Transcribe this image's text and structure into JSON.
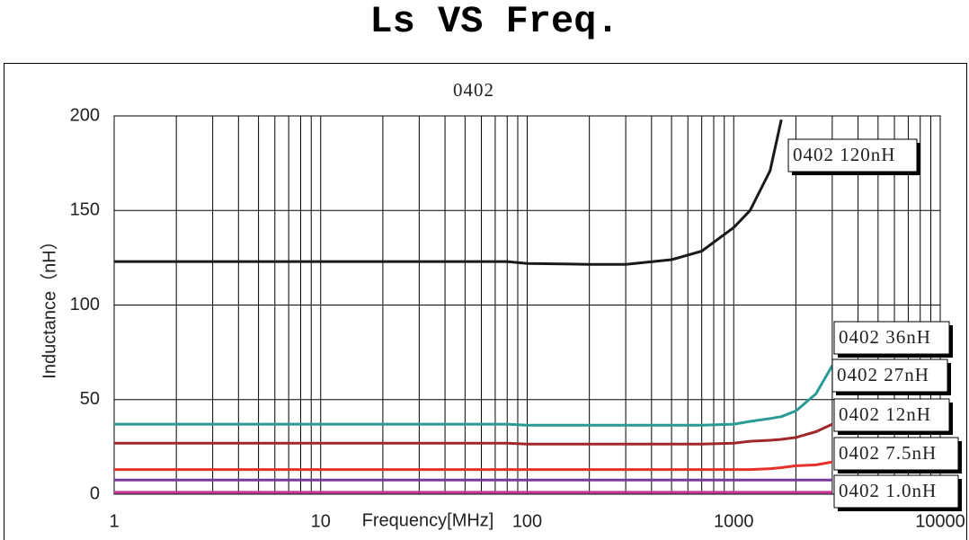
{
  "chart_data": {
    "type": "line",
    "title": "Ls VS Freq.",
    "subtitle": "0402",
    "x_label": "Frequency[MHz]",
    "y_label": "Inductance（nH）",
    "x_log": true,
    "grid": true,
    "xlim": [
      1,
      10000
    ],
    "xticks": [
      1,
      10,
      100,
      1000,
      10000
    ],
    "ylim": [
      0,
      200
    ],
    "yticks": [
      0,
      50,
      100,
      150,
      200
    ],
    "x": [
      1,
      2,
      5,
      10,
      20,
      50,
      80,
      100,
      200,
      300,
      500,
      700,
      1000,
      1200,
      1500,
      1700,
      2000,
      2500,
      3000
    ],
    "series": [
      {
        "name": "0402 120nH",
        "color": "#1a1a1a",
        "values": [
          123,
          123,
          123,
          123,
          123,
          123,
          123,
          122,
          121.5,
          121.5,
          124,
          128.5,
          141,
          150,
          171,
          198,
          null,
          null,
          null
        ]
      },
      {
        "name": "0402 36nH",
        "color": "#2a9a94",
        "values": [
          37,
          37,
          37,
          37,
          37,
          37,
          37,
          36.5,
          36.5,
          36.5,
          36.5,
          36.5,
          37,
          38.5,
          40,
          41,
          44,
          53,
          68
        ]
      },
      {
        "name": "0402 27nH",
        "color": "#a0282a",
        "values": [
          27,
          27,
          27,
          27,
          27,
          27,
          27,
          26.5,
          26.5,
          26.5,
          26.5,
          26.5,
          27,
          28,
          28.5,
          29,
          30,
          33,
          37
        ]
      },
      {
        "name": "0402 12nH",
        "color": "#e8302a",
        "values": [
          13,
          13,
          13,
          13,
          13,
          13,
          13,
          13,
          13,
          13,
          13,
          13,
          13,
          13,
          13.5,
          14,
          15,
          15.5,
          17
        ]
      },
      {
        "name": "0402 7.5nH",
        "color": "#7a3a9a",
        "values": [
          7.5,
          7.5,
          7.5,
          7.5,
          7.5,
          7.5,
          7.5,
          7.5,
          7.5,
          7.5,
          7.5,
          7.5,
          7.5,
          7.5,
          7.5,
          7.5,
          7.5,
          7.5,
          7.5
        ]
      },
      {
        "name": "0402 1.0nH",
        "color": "#cc3399",
        "values": [
          1,
          1,
          1,
          1,
          1,
          1,
          1,
          1,
          1,
          1,
          1,
          1,
          1,
          1,
          1,
          1,
          1,
          1,
          1
        ]
      }
    ]
  }
}
